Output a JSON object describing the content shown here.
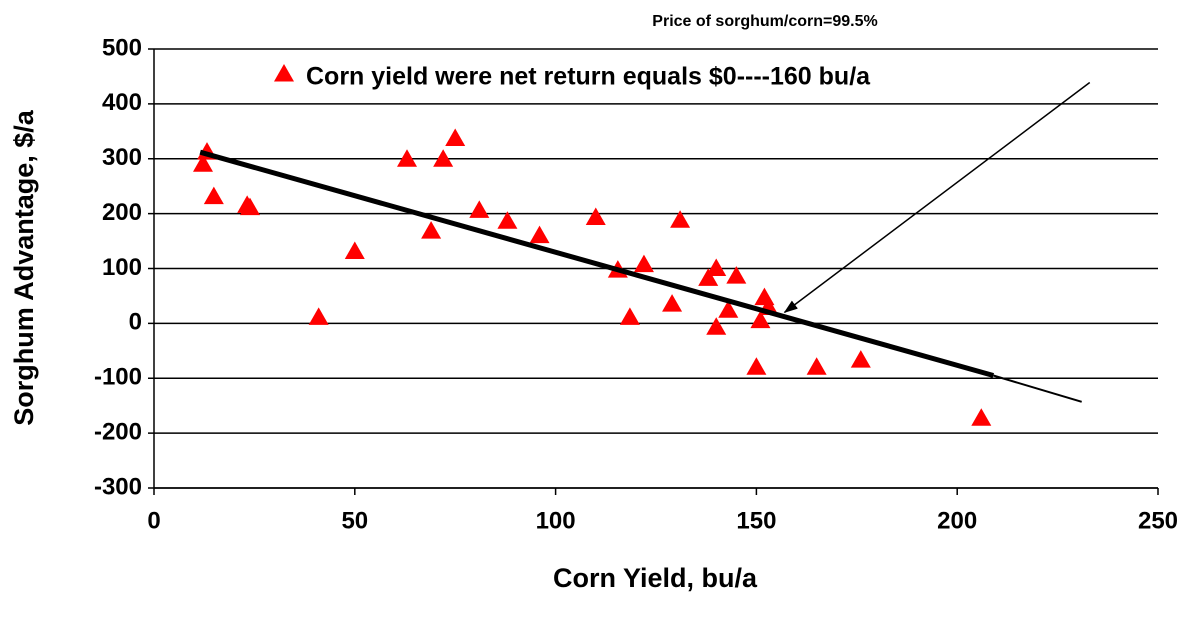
{
  "chart_data": {
    "type": "scatter",
    "title": "Price of  sorghum/corn=99.5%",
    "x_label": "Corn Yield, bu/a",
    "y_label": "Sorghum Advantage, $/a",
    "series": [
      {
        "name": "Corn yield were net return equals $0----160 bu/a",
        "color": "#ff0000",
        "x": [
          12.2,
          13.2,
          14.9,
          23.2,
          23.9,
          41,
          50,
          63,
          69,
          72,
          75,
          81,
          88,
          96,
          110,
          115.5,
          118.5,
          122,
          129,
          131,
          138,
          140,
          140,
          143,
          145,
          151,
          152,
          153,
          150,
          165,
          176,
          206
        ],
        "values": [
          290,
          312,
          231,
          215,
          211,
          11,
          131,
          299,
          168,
          299,
          337,
          206,
          186,
          160,
          193,
          97,
          11,
          107,
          35,
          188,
          82,
          100,
          -7,
          24,
          86,
          5,
          47,
          29,
          -80,
          -80,
          -67,
          -173
        ]
      }
    ],
    "trend_line": {
      "x": [
        11.5,
        209
      ],
      "y": [
        312,
        -95
      ]
    },
    "trend_extension": {
      "x": [
        209,
        231
      ],
      "y": [
        -95,
        -143
      ]
    },
    "arrow": {
      "x": [
        233,
        157
      ],
      "y": [
        439,
        20
      ]
    },
    "xlim": [
      0,
      250
    ],
    "xticks": [
      0,
      50,
      100,
      150,
      200,
      250
    ],
    "ylim": [
      -300,
      500
    ],
    "yticks": [
      -300,
      -200,
      -100,
      0,
      100,
      200,
      300,
      400,
      500
    ],
    "grid": true
  }
}
